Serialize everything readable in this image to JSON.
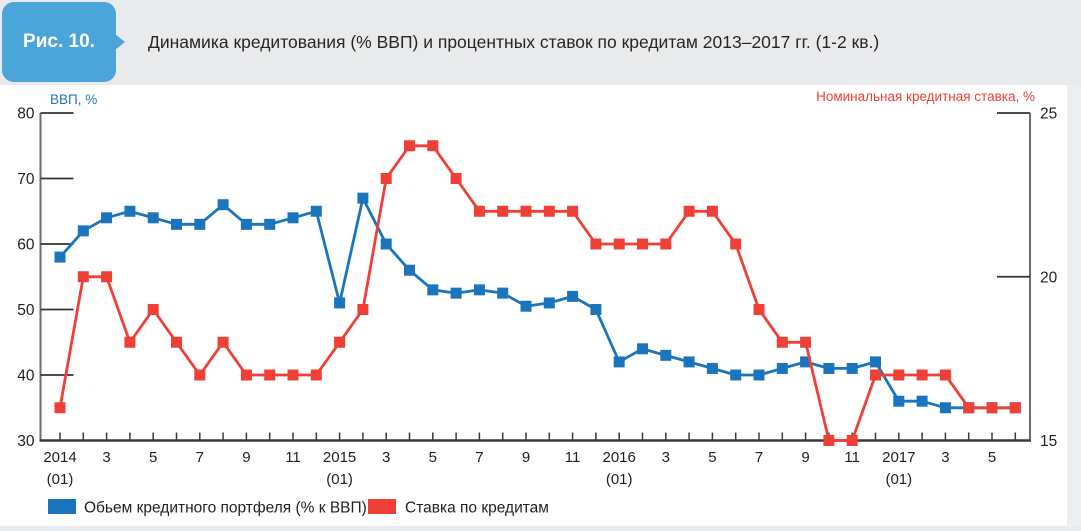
{
  "figure": {
    "badge": "Рис. 10.",
    "title": "Динамика кредитования (% ВВП) и процентных ставок по кредитам 2013–2017 гг. (1-2 кв.)"
  },
  "chart_data": {
    "type": "line",
    "title": "Динамика кредитования (% ВВП) и процентных ставок по кредитам 2013–2017 гг. (1-2 кв.)",
    "grid": "off",
    "legend_position": "bottom",
    "left_axis": {
      "title": "ВВП, %",
      "color": "#1b75bc",
      "min": 30,
      "max": 80,
      "ticks": [
        80,
        70,
        60,
        50,
        40,
        30
      ]
    },
    "right_axis": {
      "title": "Номинальная кредитная ставка, %",
      "color": "#ee4036",
      "min": 15,
      "max": 25,
      "ticks": [
        25,
        20,
        15
      ]
    },
    "x_axis": {
      "months": [
        "2014-01",
        "2014-02",
        "2014-03",
        "2014-04",
        "2014-05",
        "2014-06",
        "2014-07",
        "2014-08",
        "2014-09",
        "2014-10",
        "2014-11",
        "2014-12",
        "2015-01",
        "2015-02",
        "2015-03",
        "2015-04",
        "2015-05",
        "2015-06",
        "2015-07",
        "2015-08",
        "2015-09",
        "2015-10",
        "2015-11",
        "2015-12",
        "2016-01",
        "2016-02",
        "2016-03",
        "2016-04",
        "2016-05",
        "2016-06",
        "2016-07",
        "2016-08",
        "2016-09",
        "2016-10",
        "2016-11",
        "2016-12",
        "2017-01",
        "2017-02",
        "2017-03",
        "2017-04",
        "2017-05",
        "2017-06"
      ],
      "tick_labels": [
        {
          "m": 0,
          "line1": "2014",
          "line2": "(01)"
        },
        {
          "m": 2,
          "line1": "3"
        },
        {
          "m": 4,
          "line1": "5"
        },
        {
          "m": 6,
          "line1": "7"
        },
        {
          "m": 8,
          "line1": "9"
        },
        {
          "m": 10,
          "line1": "11"
        },
        {
          "m": 12,
          "line1": "2015",
          "line2": "(01)"
        },
        {
          "m": 14,
          "line1": "3"
        },
        {
          "m": 16,
          "line1": "5"
        },
        {
          "m": 18,
          "line1": "7"
        },
        {
          "m": 20,
          "line1": "9"
        },
        {
          "m": 22,
          "line1": "11"
        },
        {
          "m": 24,
          "line1": "2016",
          "line2": "(01)"
        },
        {
          "m": 26,
          "line1": "3"
        },
        {
          "m": 28,
          "line1": "5"
        },
        {
          "m": 30,
          "line1": "7"
        },
        {
          "m": 32,
          "line1": "9"
        },
        {
          "m": 34,
          "line1": "11"
        },
        {
          "m": 36,
          "line1": "2017",
          "line2": "(01)"
        },
        {
          "m": 38,
          "line1": "3"
        },
        {
          "m": 40,
          "line1": "5"
        }
      ]
    },
    "series": [
      {
        "name": "Обьем кредитного портфеля (% к ВВП)",
        "axis": "left",
        "color": "#1b75bc",
        "values": [
          58,
          62,
          64,
          65,
          64,
          63,
          63,
          66,
          63,
          63,
          64,
          65,
          51,
          67,
          60,
          56,
          53,
          52.5,
          53,
          52.5,
          50.5,
          51,
          52,
          50,
          42,
          44,
          43,
          42,
          41,
          40,
          40,
          41,
          42,
          41,
          41,
          42,
          36,
          36,
          35,
          35,
          35,
          35
        ]
      },
      {
        "name": "Ставка по кредитам",
        "axis": "right",
        "color": "#ee4036",
        "values": [
          16,
          20,
          20,
          18,
          19,
          18,
          17,
          18,
          17,
          17,
          17,
          17,
          18,
          19,
          23,
          24,
          24,
          23,
          22,
          22,
          22,
          22,
          22,
          21,
          21,
          21,
          21,
          22,
          22,
          21,
          19,
          18,
          18,
          15,
          15,
          17,
          17,
          17,
          17,
          16,
          16,
          16
        ]
      }
    ]
  }
}
